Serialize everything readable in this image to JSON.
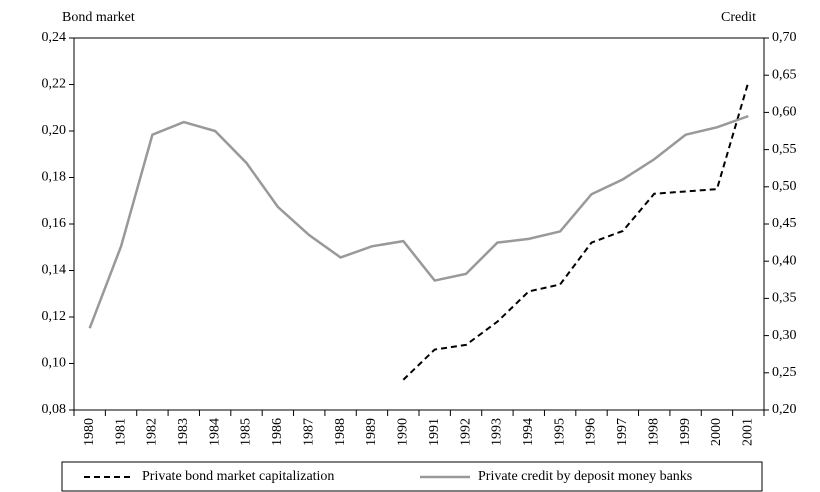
{
  "chart_data": {
    "type": "line",
    "y_label": "Bond market",
    "y2_label": "Credit",
    "categories": [
      "1980",
      "1981",
      "1982",
      "1983",
      "1984",
      "1985",
      "1986",
      "1987",
      "1988",
      "1989",
      "1990",
      "1991",
      "1992",
      "1993",
      "1994",
      "1995",
      "1996",
      "1997",
      "1998",
      "1999",
      "2000",
      "2001"
    ],
    "series": [
      {
        "name": "Private bond market capitalization",
        "color": "#000000",
        "dash": true,
        "values": [
          null,
          null,
          null,
          null,
          null,
          null,
          null,
          null,
          null,
          null,
          0.093,
          0.106,
          0.108,
          0.118,
          0.131,
          0.134,
          0.152,
          0.157,
          0.173,
          0.174,
          0.175,
          0.221
        ]
      },
      {
        "name": "Private credit by deposit money banks",
        "color": "#999999",
        "axis": "y2",
        "values": [
          0.31,
          0.42,
          0.57,
          0.587,
          0.575,
          0.532,
          0.473,
          0.435,
          0.405,
          0.42,
          0.427,
          0.374,
          0.383,
          0.425,
          0.43,
          0.44,
          0.49,
          0.51,
          0.537,
          0.57,
          0.58,
          0.595
        ]
      }
    ],
    "ylim": [
      0.08,
      0.24
    ],
    "yticks": [
      {
        "value": 0.08,
        "label": "0,08"
      },
      {
        "value": 0.1,
        "label": "0,10"
      },
      {
        "value": 0.12,
        "label": "0,12"
      },
      {
        "value": 0.14,
        "label": "0,14"
      },
      {
        "value": 0.16,
        "label": "0,16"
      },
      {
        "value": 0.18,
        "label": "0,18"
      },
      {
        "value": 0.2,
        "label": "0,20"
      },
      {
        "value": 0.22,
        "label": "0,22"
      },
      {
        "value": 0.24,
        "label": "0,24"
      }
    ],
    "y2lim": [
      0.2,
      0.7
    ],
    "y2ticks": [
      {
        "value": 0.2,
        "label": "0,20"
      },
      {
        "value": 0.25,
        "label": "0,25"
      },
      {
        "value": 0.3,
        "label": "0,30"
      },
      {
        "value": 0.35,
        "label": "0,35"
      },
      {
        "value": 0.4,
        "label": "0,40"
      },
      {
        "value": 0.45,
        "label": "0,45"
      },
      {
        "value": 0.5,
        "label": "0,50"
      },
      {
        "value": 0.55,
        "label": "0,55"
      },
      {
        "value": 0.6,
        "label": "0,60"
      },
      {
        "value": 0.65,
        "label": "0,65"
      },
      {
        "value": 0.7,
        "label": "0,70"
      }
    ],
    "grid": false,
    "legend": "bottom"
  }
}
